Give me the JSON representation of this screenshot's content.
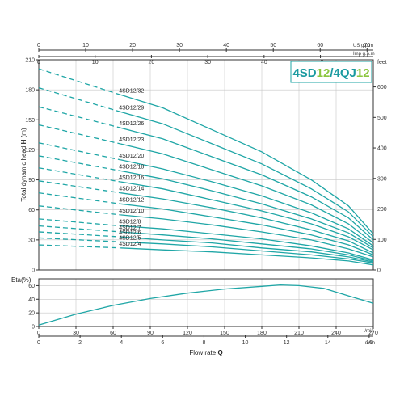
{
  "chart_data": [
    {
      "type": "line",
      "title": "4SD12/4QJ12",
      "title_parts": [
        {
          "text": "4SD",
          "color": "#1a9aa0"
        },
        {
          "text": "12",
          "color": "#8cc63f"
        },
        {
          "text": "/4QJ",
          "color": "#1a9aa0"
        },
        {
          "text": "12",
          "color": "#8cc63f"
        }
      ],
      "ylabel": "Total dynamic head H (m)",
      "ylabel_prefix": "Total dynamic head ",
      "ylabel_symbol": "H",
      "ylabel_suffix": " (m)",
      "ylim": [
        0,
        210
      ],
      "yticks": [
        0,
        30,
        60,
        90,
        120,
        150,
        180,
        210
      ],
      "right_axis": {
        "unit": "feet",
        "ticks": [
          0,
          100,
          200,
          300,
          400,
          500,
          600
        ]
      },
      "top_axes": [
        {
          "unit": "US g.p.m",
          "ticks": [
            0,
            10,
            20,
            30,
            40,
            50,
            60,
            70
          ]
        },
        {
          "unit": "Imp g.p.m",
          "ticks": [
            0,
            10,
            20,
            30,
            40,
            50,
            60,
            70
          ]
        }
      ],
      "xlim": [
        0,
        270
      ],
      "grid": true,
      "curve_color": "#1fa6a6",
      "curve_start_x": 66,
      "curve_end_x": 270,
      "series": [
        {
          "name": "4SD12/32",
          "dashed_start_head": 201,
          "values": [
            [
              66,
              175
            ],
            [
              100,
              162
            ],
            [
              140,
              140
            ],
            [
              180,
              118
            ],
            [
              220,
              90
            ],
            [
              250,
              64
            ],
            [
              270,
              36
            ]
          ]
        },
        {
          "name": "4SD12/29",
          "dashed_start_head": 182,
          "values": [
            [
              66,
              158
            ],
            [
              100,
              146
            ],
            [
              140,
              126
            ],
            [
              180,
              106
            ],
            [
              220,
              81
            ],
            [
              250,
              58
            ],
            [
              270,
              33
            ]
          ]
        },
        {
          "name": "4SD12/26",
          "dashed_start_head": 163,
          "values": [
            [
              66,
              142
            ],
            [
              100,
              131
            ],
            [
              140,
              113
            ],
            [
              180,
              95
            ],
            [
              220,
              73
            ],
            [
              250,
              52
            ],
            [
              270,
              30
            ]
          ]
        },
        {
          "name": "4SD12/23",
          "dashed_start_head": 145,
          "values": [
            [
              66,
              126
            ],
            [
              100,
              116
            ],
            [
              140,
              100
            ],
            [
              180,
              84
            ],
            [
              220,
              65
            ],
            [
              250,
              46
            ],
            [
              270,
              27
            ]
          ]
        },
        {
          "name": "4SD12/20",
          "dashed_start_head": 127,
          "values": [
            [
              66,
              110
            ],
            [
              100,
              101
            ],
            [
              140,
              88
            ],
            [
              180,
              74
            ],
            [
              220,
              57
            ],
            [
              250,
              41
            ],
            [
              270,
              24
            ]
          ]
        },
        {
          "name": "4SD12/18",
          "dashed_start_head": 114,
          "values": [
            [
              66,
              99
            ],
            [
              100,
              91
            ],
            [
              140,
              79
            ],
            [
              180,
              66
            ],
            [
              220,
              51
            ],
            [
              250,
              37
            ],
            [
              270,
              22
            ]
          ]
        },
        {
          "name": "4SD12/16",
          "dashed_start_head": 102,
          "values": [
            [
              66,
              88
            ],
            [
              100,
              81
            ],
            [
              140,
              70
            ],
            [
              180,
              59
            ],
            [
              220,
              46
            ],
            [
              250,
              33
            ],
            [
              270,
              20
            ]
          ]
        },
        {
          "name": "4SD12/14",
          "dashed_start_head": 89,
          "values": [
            [
              66,
              77
            ],
            [
              100,
              71
            ],
            [
              140,
              62
            ],
            [
              180,
              52
            ],
            [
              220,
              40
            ],
            [
              250,
              29
            ],
            [
              270,
              17
            ]
          ]
        },
        {
          "name": "4SD12/12",
          "dashed_start_head": 77,
          "values": [
            [
              66,
              66
            ],
            [
              100,
              61
            ],
            [
              140,
              53
            ],
            [
              180,
              45
            ],
            [
              220,
              35
            ],
            [
              250,
              25
            ],
            [
              270,
              15
            ]
          ]
        },
        {
          "name": "4SD12/10",
          "dashed_start_head": 64,
          "values": [
            [
              66,
              55
            ],
            [
              100,
              51
            ],
            [
              140,
              45
            ],
            [
              180,
              38
            ],
            [
              220,
              30
            ],
            [
              250,
              21
            ],
            [
              270,
              13
            ]
          ]
        },
        {
          "name": "4SD12/8",
          "dashed_start_head": 51,
          "values": [
            [
              66,
              44
            ],
            [
              100,
              41
            ],
            [
              140,
              36
            ],
            [
              180,
              31
            ],
            [
              220,
              24
            ],
            [
              250,
              17
            ],
            [
              270,
              10
            ]
          ]
        },
        {
          "name": "4SD12/7",
          "dashed_start_head": 44,
          "values": [
            [
              66,
              38
            ],
            [
              100,
              35
            ],
            [
              140,
              31
            ],
            [
              180,
              26
            ],
            [
              220,
              21
            ],
            [
              250,
              15
            ],
            [
              270,
              9
            ]
          ]
        },
        {
          "name": "4SD12/6",
          "dashed_start_head": 38,
          "values": [
            [
              66,
              33
            ],
            [
              100,
              30
            ],
            [
              140,
              27
            ],
            [
              180,
              22
            ],
            [
              220,
              18
            ],
            [
              250,
              13
            ],
            [
              270,
              8
            ]
          ]
        },
        {
          "name": "4SD12/5",
          "dashed_start_head": 32,
          "values": [
            [
              66,
              28
            ],
            [
              100,
              26
            ],
            [
              140,
              23
            ],
            [
              180,
              19
            ],
            [
              220,
              15
            ],
            [
              250,
              11
            ],
            [
              270,
              7
            ]
          ]
        },
        {
          "name": "4SD12/4",
          "dashed_start_head": 25,
          "values": [
            [
              66,
              22
            ],
            [
              100,
              20
            ],
            [
              140,
              18
            ],
            [
              180,
              15
            ],
            [
              220,
              12
            ],
            [
              250,
              9
            ],
            [
              270,
              5
            ]
          ]
        }
      ]
    },
    {
      "type": "line",
      "ylabel": "Eta(%)",
      "ylim": [
        0,
        70
      ],
      "yticks": [
        0,
        20,
        40,
        60
      ],
      "xlim": [
        0,
        270
      ],
      "grid": true,
      "bottom_axes": [
        {
          "unit": "l/min",
          "ticks": [
            0,
            30,
            60,
            90,
            120,
            150,
            180,
            210,
            240,
            270
          ]
        },
        {
          "unit": "m³/h",
          "ticks": [
            0,
            2,
            4,
            6,
            8,
            10,
            12,
            14,
            16
          ]
        }
      ],
      "xlabel": "Flow rate Q",
      "xlabel_prefix": "Flow rate ",
      "xlabel_symbol": "Q",
      "series": [
        {
          "values": [
            [
              0,
              2
            ],
            [
              30,
              18
            ],
            [
              60,
              31
            ],
            [
              90,
              41
            ],
            [
              120,
              49
            ],
            [
              150,
              55
            ],
            [
              180,
              59
            ],
            [
              195,
              61
            ],
            [
              210,
              60
            ],
            [
              230,
              56
            ],
            [
              250,
              45
            ],
            [
              270,
              34
            ]
          ]
        }
      ]
    }
  ]
}
